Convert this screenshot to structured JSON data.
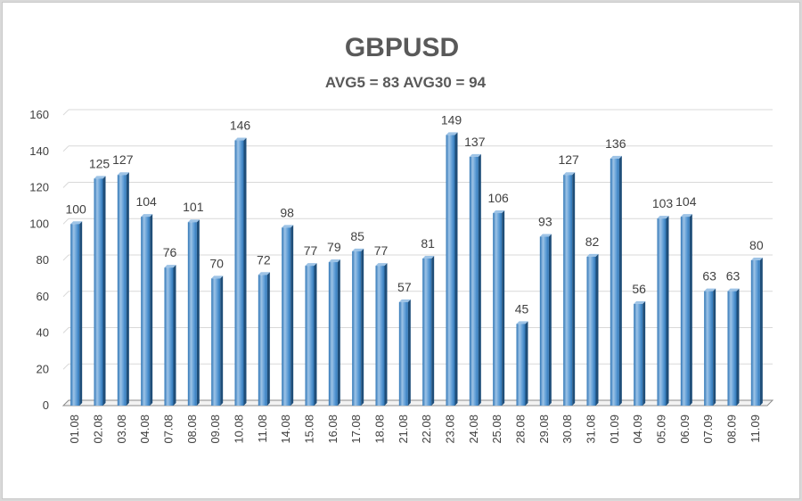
{
  "chart_data": {
    "type": "bar",
    "title": "GBPUSD",
    "subtitle": "AVG5 = 83 AVG30 = 94",
    "xlabel": "",
    "ylabel": "",
    "ylim": [
      0,
      160
    ],
    "yticks": [
      0,
      20,
      40,
      60,
      80,
      100,
      120,
      140,
      160
    ],
    "grid": true,
    "legend": "none",
    "categories": [
      "01.08",
      "02.08",
      "03.08",
      "04.08",
      "07.08",
      "08.08",
      "09.08",
      "10.08",
      "11.08",
      "14.08",
      "15.08",
      "16.08",
      "17.08",
      "18.08",
      "21.08",
      "22.08",
      "23.08",
      "24.08",
      "25.08",
      "28.08",
      "29.08",
      "30.08",
      "31.08",
      "01.09",
      "04.09",
      "05.09",
      "06.09",
      "07.09",
      "08.09",
      "11.09"
    ],
    "values": [
      100,
      125,
      127,
      104,
      76,
      101,
      70,
      146,
      72,
      98,
      77,
      79,
      85,
      77,
      57,
      81,
      149,
      137,
      106,
      45,
      93,
      127,
      82,
      136,
      56,
      103,
      104,
      63,
      63,
      80
    ],
    "colors": {
      "bar_light": "#9dc3e6",
      "bar_mid": "#5b9bd5",
      "bar_dark": "#2e75b6",
      "bar_side": "#1f4e79",
      "grid": "#d9d9d9",
      "axis": "#8c8c8c",
      "title": "#595959",
      "text": "#404040"
    }
  }
}
